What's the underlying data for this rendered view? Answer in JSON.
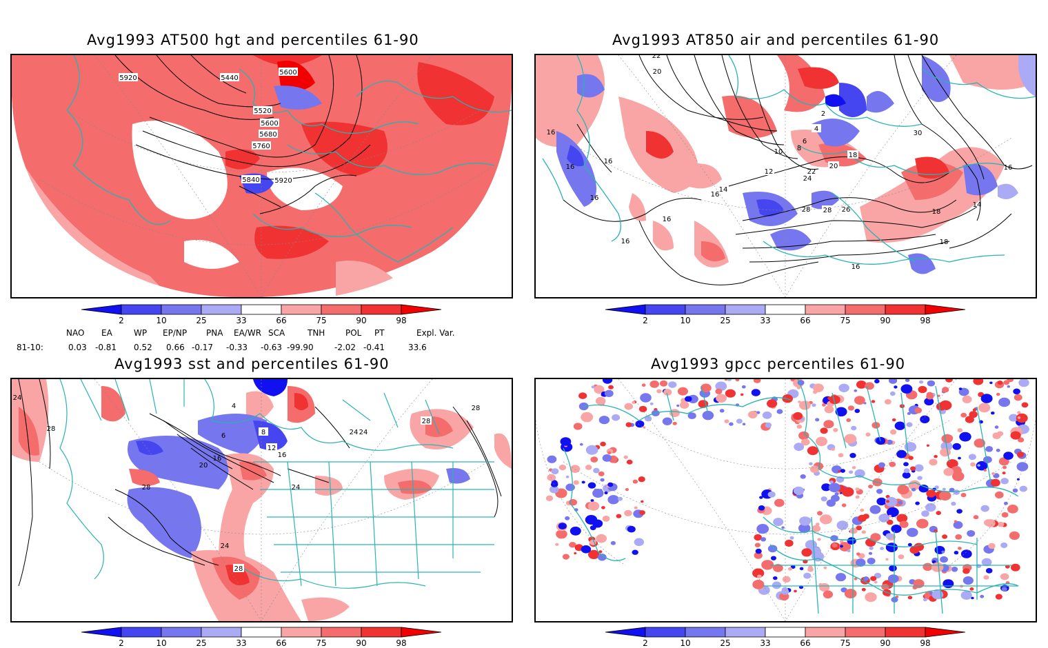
{
  "panels": [
    {
      "title": "Avg1993 AT500 hgt and percentiles 61-90",
      "contour_labels": [
        "5920",
        "5440",
        "5600",
        "5520",
        "5600",
        "5680",
        "5760",
        "5840",
        "5920"
      ]
    },
    {
      "title": "Avg1993 AT850 air and percentiles 61-90",
      "contour_labels": [
        "22",
        "20",
        "16",
        "16",
        "16",
        "16",
        "16",
        "16",
        "16",
        "14",
        "2",
        "4",
        "6",
        "8",
        "10",
        "12",
        "18",
        "20",
        "22",
        "24",
        "26",
        "28",
        "28",
        "30",
        "18",
        "16",
        "14",
        "18",
        "16"
      ]
    },
    {
      "title": "Avg1993 sst and percentiles 61-90",
      "contour_labels": [
        "24",
        "28",
        "28",
        "6",
        "4",
        "8",
        "16",
        "20",
        "12",
        "16",
        "24",
        "24",
        "28",
        "28",
        "24",
        "24",
        "28"
      ]
    },
    {
      "title": "Avg1993 gpcc percentiles 61-90",
      "contour_labels": []
    }
  ],
  "colorbar": {
    "labels": [
      "2",
      "10",
      "25",
      "33",
      "66",
      "75",
      "90",
      "98"
    ],
    "colors": [
      "#1010f0",
      "#4646f0",
      "#7676ee",
      "#aaaaf5",
      "#ffffff",
      "#f9a5a5",
      "#f46c6c",
      "#f03232",
      "#f00000"
    ]
  },
  "indices": {
    "headers": [
      "NAO",
      "EA",
      "WP",
      "EP/NP",
      "PNA",
      "EA/WR",
      "SCA",
      "TNH",
      "POL",
      "PT",
      "Expl. Var."
    ],
    "row_label": "81-10:",
    "values": [
      "0.03",
      "-0.81",
      "0.52",
      "0.66",
      "-0.17",
      "-0.33",
      "-0.63",
      "-99.90",
      "-2.02",
      "-0.41",
      "33.6"
    ]
  },
  "map_colors": {
    "coast": "#29b3b3",
    "contour": "#000000",
    "red_light": "#f9a5a5",
    "red_mid": "#f46c6c",
    "red_dark": "#f03232",
    "blue_light": "#aaaaf5",
    "blue_mid": "#7676ee",
    "blue_dark": "#1010f0"
  }
}
